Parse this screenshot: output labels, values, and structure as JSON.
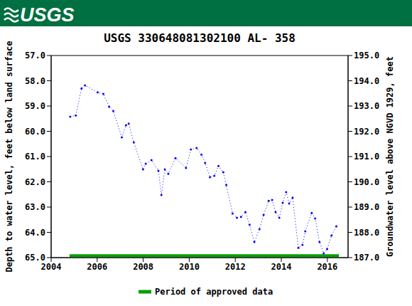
{
  "chart_data": {
    "type": "line",
    "logo_text": "USGS",
    "title": "USGS 330648081302100 AL- 358",
    "ylabel": "Depth to water level, feet below land surface",
    "y2label": "Groundwater level above NGVD 1929, feet",
    "xlim": [
      2004,
      2016.9
    ],
    "xticks": [
      2004,
      2006,
      2008,
      2010,
      2012,
      2014,
      2016
    ],
    "ylim": [
      65,
      57
    ],
    "yticks": [
      {
        "value": 57,
        "label": "57.0"
      },
      {
        "value": 58,
        "label": "58.0"
      },
      {
        "value": 59,
        "label": "59.0"
      },
      {
        "value": 60,
        "label": "60.0"
      },
      {
        "value": 61,
        "label": "61.0"
      },
      {
        "value": 62,
        "label": "62.0"
      },
      {
        "value": 63,
        "label": "63.0"
      },
      {
        "value": 64,
        "label": "64.0"
      },
      {
        "value": 65,
        "label": "65.0"
      }
    ],
    "y2lim": [
      187,
      195
    ],
    "y2ticks": [
      {
        "value": 187,
        "label": "187.0"
      },
      {
        "value": 188,
        "label": "188.0"
      },
      {
        "value": 189,
        "label": "189.0"
      },
      {
        "value": 190,
        "label": "190.0"
      },
      {
        "value": 191,
        "label": "191.0"
      },
      {
        "value": 192,
        "label": "192.0"
      },
      {
        "value": 193,
        "label": "193.0"
      },
      {
        "value": 194,
        "label": "194.0"
      },
      {
        "value": 195,
        "label": "195.0"
      }
    ],
    "grid": false,
    "legend": "bottom",
    "series": [
      {
        "color": "#0000ff",
        "marker": "circle",
        "line_style": "dotted",
        "x": [
          2004.83,
          2005.07,
          2005.32,
          2005.47,
          2006.02,
          2006.27,
          2006.52,
          2006.7,
          2007.07,
          2007.25,
          2007.37,
          2007.59,
          2007.99,
          2008.11,
          2008.36,
          2008.66,
          2008.79,
          2008.94,
          2009.09,
          2009.4,
          2009.86,
          2010.07,
          2010.32,
          2010.53,
          2010.69,
          2010.9,
          2011.09,
          2011.27,
          2011.48,
          2011.61,
          2011.88,
          2012.07,
          2012.25,
          2012.44,
          2012.62,
          2012.83,
          2013.05,
          2013.23,
          2013.45,
          2013.6,
          2013.75,
          2013.91,
          2014.06,
          2014.21,
          2014.34,
          2014.49,
          2014.74,
          2014.92,
          2015.04,
          2015.32,
          2015.47,
          2015.66,
          2015.84,
          2015.99,
          2016.18,
          2016.39
        ],
        "values": [
          59.42,
          59.37,
          58.3,
          58.18,
          58.46,
          58.52,
          59.03,
          59.2,
          60.24,
          59.76,
          59.7,
          60.44,
          61.51,
          61.28,
          61.14,
          61.56,
          62.52,
          61.51,
          61.68,
          61.06,
          61.45,
          60.72,
          60.66,
          60.92,
          61.25,
          61.82,
          61.76,
          61.37,
          61.62,
          62.13,
          63.25,
          63.42,
          63.39,
          63.2,
          63.7,
          64.38,
          63.87,
          63.31,
          62.75,
          62.72,
          63.2,
          63.42,
          62.83,
          62.41,
          62.86,
          62.63,
          64.61,
          64.49,
          63.96,
          63.23,
          63.45,
          64.38,
          64.83,
          64.66,
          64.13,
          63.76
        ]
      },
      {
        "name": "Period of approved data",
        "color": "#00a000",
        "line_style": "solid",
        "x": [
          2004.8,
          2016.5
        ],
        "values": [
          64.92,
          64.92
        ]
      }
    ]
  }
}
